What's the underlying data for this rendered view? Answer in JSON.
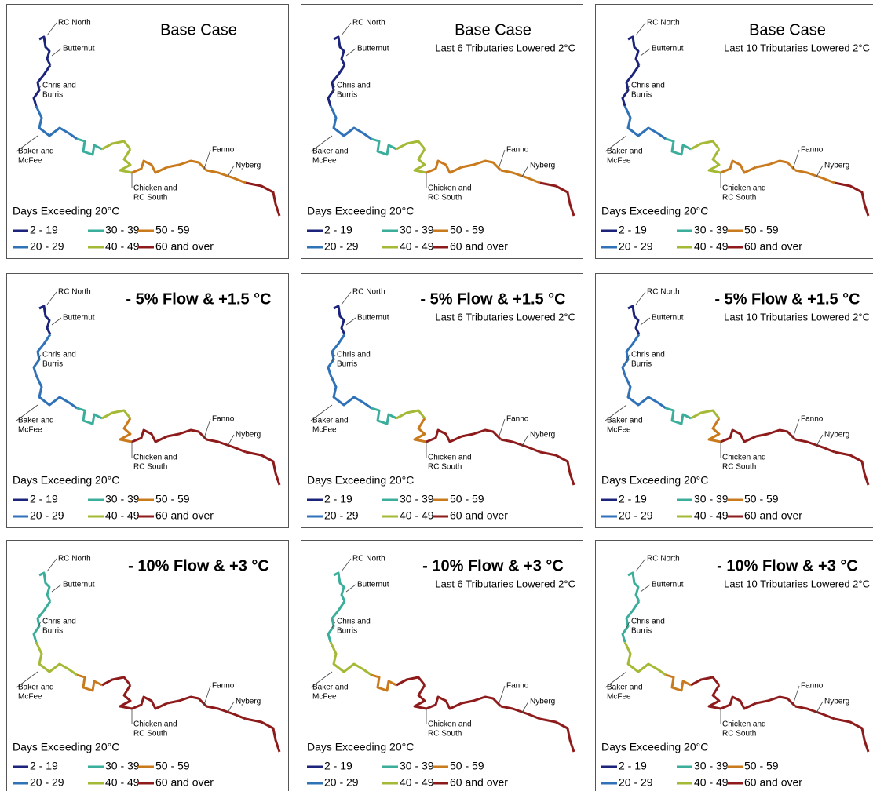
{
  "scenarios": [
    {
      "title": "Base Case",
      "reach_classes": [
        0,
        0,
        1,
        2,
        3,
        3,
        4,
        4,
        4,
        5
      ]
    },
    {
      "title": "- 5% Flow & +1.5 °C",
      "reach_classes": [
        0,
        1,
        1,
        2,
        3,
        4,
        5,
        5,
        5,
        5
      ]
    },
    {
      "title": "- 10% Flow & +3 °C",
      "reach_classes": [
        2,
        2,
        3,
        4,
        5,
        5,
        5,
        5,
        5,
        5
      ]
    }
  ],
  "variants": [
    "Last 6 Tributaries Lowered 2°C",
    "Last 10 Tributaries Lowered 2°C"
  ],
  "places": [
    [
      "RC North"
    ],
    [
      "Butternut"
    ],
    [
      "Chris and",
      "Burris"
    ],
    [
      "Baker and",
      "McFee"
    ],
    [
      "Chicken and",
      "RC South"
    ],
    [
      "Fanno"
    ],
    [
      "Nyberg"
    ]
  ],
  "legend": {
    "title": "Days Exceeding 20°C",
    "items": [
      {
        "label": "2 - 19",
        "color": "#1b237a"
      },
      {
        "label": "20 - 29",
        "color": "#2f72b8"
      },
      {
        "label": "30 - 39",
        "color": "#3aae9a"
      },
      {
        "label": "40 - 49",
        "color": "#a5b936"
      },
      {
        "label": "50 - 59",
        "color": "#c97a1c"
      },
      {
        "label": "60 and over",
        "color": "#8e1b1b"
      }
    ]
  }
}
